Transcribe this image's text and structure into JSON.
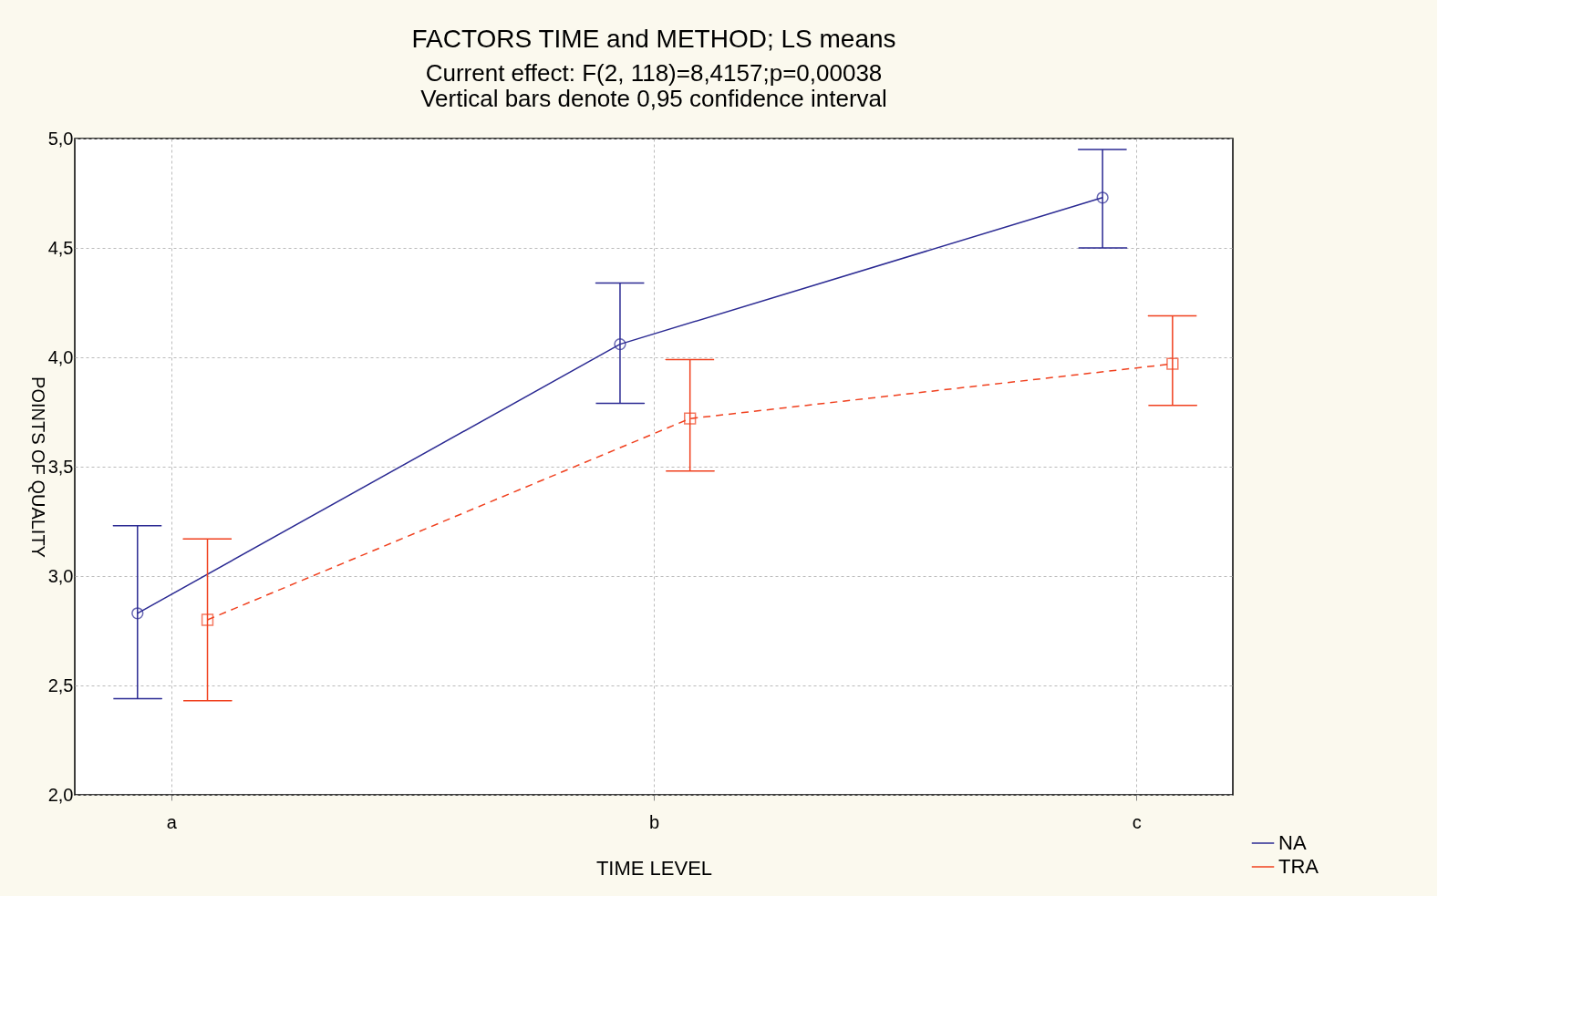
{
  "chart_data": {
    "type": "line",
    "title": "FACTORS TIME and METHOD; LS means",
    "subtitle": "Current effect: F(2, 118)=8,4157;p=0,00038",
    "annotations": [
      "Vertical bars denote 0,95 confidence interval"
    ],
    "xlabel": "TIME LEVEL",
    "ylabel": "POINTS OF QUALITY",
    "categories": [
      "a",
      "b",
      "c"
    ],
    "series": [
      {
        "name": "NA",
        "color": "#2b2a93",
        "marker": "circle",
        "line_style": "solid",
        "values": [
          2.83,
          4.06,
          4.73
        ],
        "errors": [
          [
            2.44,
            3.23
          ],
          [
            3.79,
            4.34
          ],
          [
            4.5,
            4.95
          ]
        ]
      },
      {
        "name": "TRA",
        "color": "#f0401e",
        "marker": "square",
        "line_style": "dashed",
        "values": [
          2.8,
          3.72,
          3.97
        ],
        "errors": [
          [
            2.43,
            3.17
          ],
          [
            3.48,
            3.99
          ],
          [
            3.78,
            4.19
          ]
        ]
      }
    ],
    "ylim": [
      2.0,
      5.0
    ],
    "yticks": [
      {
        "value": 2.0,
        "label": "2,0"
      },
      {
        "value": 2.5,
        "label": "2,5"
      },
      {
        "value": 3.0,
        "label": "3,0"
      },
      {
        "value": 3.5,
        "label": "3,5"
      },
      {
        "value": 4.0,
        "label": "4,0"
      },
      {
        "value": 4.5,
        "label": "4,5"
      },
      {
        "value": 5.0,
        "label": "5,0"
      }
    ],
    "grid": true,
    "legend": "bottom right"
  }
}
